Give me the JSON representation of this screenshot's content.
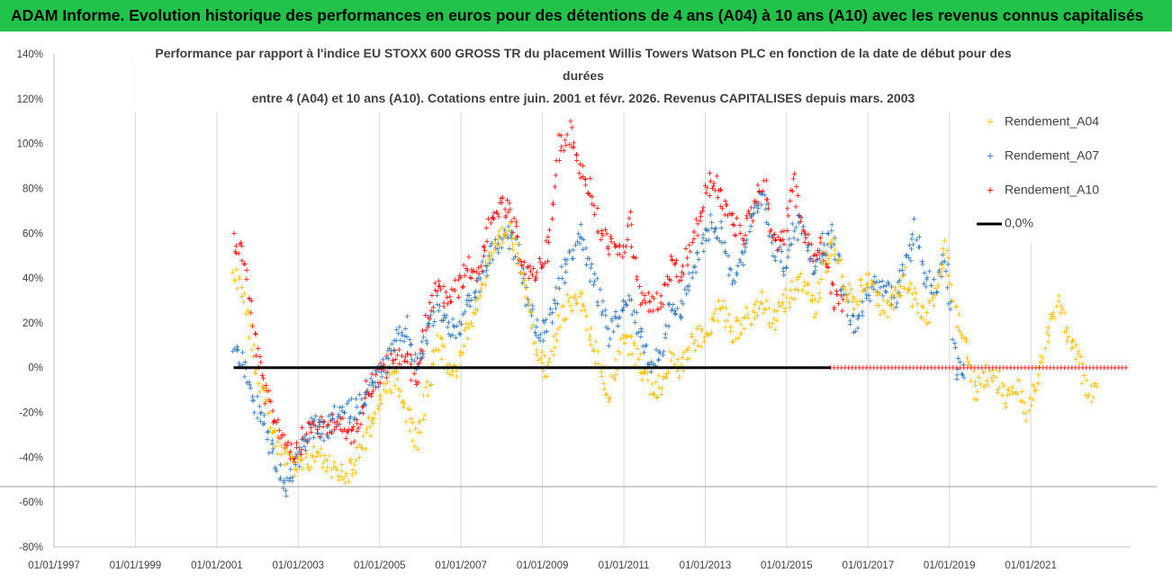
{
  "banner": {
    "text": "ADAM Informe. Evolution historique des performances en euros pour des détentions de 4 ans (A04) à 10 ans (A10) avec les revenus connus capitalisés"
  },
  "colors": {
    "banner_bg": "#21c34a",
    "A04": "#ffc000",
    "A07": "#2e75b6",
    "A10": "#ff0000",
    "zero_line": "#000000"
  },
  "chart_data": {
    "type": "scatter",
    "title_lines": [
      "Performance par rapport à l'indice EU STOXX 600 GROSS TR  du placement Willis Towers Watson PLC en fonction de la date de début pour des",
      "durées",
      "entre 4 (A04) et 10 ans (A10). Cotations entre juin. 2001 et févr. 2026. Revenus CAPITALISES depuis mars. 2003"
    ],
    "xlabel": "",
    "ylabel": "",
    "y_ticks": [
      "140%",
      "120%",
      "100%",
      "80%",
      "60%",
      "40%",
      "20%",
      "0%",
      "-20%",
      "-40%",
      "-60%",
      "-80%"
    ],
    "ylim": [
      -0.8,
      1.4
    ],
    "x_ticks": [
      "01/01/1997",
      "01/01/1999",
      "01/01/2001",
      "01/01/2003",
      "01/01/2005",
      "01/01/2007",
      "01/01/2009",
      "01/01/2011",
      "01/01/2013",
      "01/01/2015",
      "01/01/2017",
      "01/01/2019",
      "01/01/2021"
    ],
    "xlim": [
      "1997-01-01",
      "2023-06-15"
    ],
    "grid": "vertical",
    "legend_position": "right",
    "series": [
      {
        "name": "Rendement_A04",
        "color": "#ffc000",
        "x": [
          "2001-06",
          "2001-09",
          "2001-12",
          "2002-03",
          "2002-06",
          "2002-09",
          "2002-12",
          "2003-03",
          "2003-06",
          "2003-09",
          "2003-12",
          "2004-03",
          "2004-06",
          "2004-09",
          "2004-12",
          "2005-03",
          "2005-06",
          "2005-09",
          "2005-12",
          "2006-03",
          "2006-06",
          "2006-09",
          "2006-12",
          "2007-03",
          "2007-06",
          "2007-09",
          "2007-12",
          "2008-03",
          "2008-06",
          "2008-09",
          "2008-12",
          "2009-03",
          "2009-06",
          "2009-09",
          "2009-12",
          "2010-03",
          "2010-06",
          "2010-09",
          "2010-12",
          "2011-03",
          "2011-06",
          "2011-09",
          "2011-12",
          "2012-03",
          "2012-06",
          "2012-09",
          "2012-12",
          "2013-03",
          "2013-06",
          "2013-09",
          "2013-12",
          "2014-03",
          "2014-06",
          "2014-09",
          "2014-12",
          "2015-03",
          "2015-06",
          "2015-09",
          "2015-12",
          "2016-03",
          "2016-06",
          "2016-09",
          "2016-12",
          "2017-03",
          "2017-06",
          "2017-09",
          "2017-12",
          "2018-03",
          "2018-06",
          "2018-09",
          "2018-12",
          "2019-03",
          "2019-06",
          "2019-09",
          "2019-12",
          "2020-03",
          "2020-06",
          "2020-09",
          "2020-12",
          "2021-03",
          "2021-06",
          "2021-09",
          "2021-12",
          "2022-03",
          "2022-06"
        ],
        "values": [
          0.45,
          0.35,
          0.05,
          -0.15,
          -0.3,
          -0.4,
          -0.45,
          -0.43,
          -0.38,
          -0.42,
          -0.45,
          -0.47,
          -0.42,
          -0.3,
          -0.18,
          -0.08,
          -0.05,
          -0.2,
          -0.32,
          -0.1,
          0.12,
          0.03,
          0.0,
          0.18,
          0.3,
          0.45,
          0.55,
          0.62,
          0.5,
          0.3,
          0.05,
          -0.02,
          0.2,
          0.3,
          0.32,
          0.15,
          0.02,
          -0.12,
          0.08,
          0.12,
          0.02,
          -0.1,
          -0.08,
          0.05,
          0.0,
          0.1,
          0.15,
          0.2,
          0.28,
          0.15,
          0.2,
          0.25,
          0.3,
          0.2,
          0.28,
          0.35,
          0.4,
          0.25,
          0.45,
          0.55,
          0.35,
          0.3,
          0.4,
          0.35,
          0.25,
          0.3,
          0.4,
          0.3,
          0.2,
          0.35,
          0.55,
          0.25,
          0.1,
          -0.12,
          -0.02,
          -0.05,
          -0.15,
          -0.08,
          -0.2,
          -0.05,
          0.15,
          0.28,
          0.15,
          0.05,
          -0.1
        ]
      },
      {
        "name": "Rendement_A07",
        "color": "#2e75b6",
        "x": [
          "2001-06",
          "2001-09",
          "2001-12",
          "2002-03",
          "2002-06",
          "2002-09",
          "2002-12",
          "2003-03",
          "2003-06",
          "2003-09",
          "2003-12",
          "2004-03",
          "2004-06",
          "2004-09",
          "2004-12",
          "2005-03",
          "2005-06",
          "2005-09",
          "2005-12",
          "2006-03",
          "2006-06",
          "2006-09",
          "2006-12",
          "2007-03",
          "2007-06",
          "2007-09",
          "2007-12",
          "2008-03",
          "2008-06",
          "2008-09",
          "2008-12",
          "2009-03",
          "2009-06",
          "2009-09",
          "2009-12",
          "2010-03",
          "2010-06",
          "2010-09",
          "2010-12",
          "2011-03",
          "2011-06",
          "2011-09",
          "2011-12",
          "2012-03",
          "2012-06",
          "2012-09",
          "2012-12",
          "2013-03",
          "2013-06",
          "2013-09",
          "2013-12",
          "2014-03",
          "2014-06",
          "2014-09",
          "2014-12",
          "2015-03",
          "2015-06",
          "2015-09",
          "2015-12",
          "2016-03",
          "2016-06",
          "2016-09",
          "2016-12",
          "2017-03",
          "2017-06",
          "2017-09",
          "2017-12",
          "2018-03",
          "2018-06",
          "2018-09",
          "2018-12",
          "2019-03"
        ],
        "values": [
          0.1,
          0.0,
          -0.15,
          -0.25,
          -0.4,
          -0.55,
          -0.45,
          -0.32,
          -0.25,
          -0.3,
          -0.22,
          -0.2,
          -0.18,
          -0.12,
          -0.05,
          0.02,
          0.12,
          0.18,
          0.0,
          0.15,
          0.28,
          0.2,
          0.15,
          0.28,
          0.35,
          0.48,
          0.55,
          0.58,
          0.5,
          0.28,
          0.15,
          0.2,
          0.35,
          0.5,
          0.6,
          0.45,
          0.3,
          0.15,
          0.25,
          0.3,
          0.15,
          0.02,
          0.05,
          0.3,
          0.25,
          0.4,
          0.55,
          0.65,
          0.6,
          0.4,
          0.5,
          0.65,
          0.75,
          0.55,
          0.45,
          0.6,
          0.65,
          0.45,
          0.55,
          0.6,
          0.3,
          0.2,
          0.3,
          0.4,
          0.35,
          0.3,
          0.45,
          0.62,
          0.4,
          0.35,
          0.5,
          0.0
        ]
      },
      {
        "name": "Rendement_A10",
        "color": "#ff0000",
        "x": [
          "2001-06",
          "2001-09",
          "2001-12",
          "2002-03",
          "2002-06",
          "2002-09",
          "2002-12",
          "2003-03",
          "2003-06",
          "2003-09",
          "2003-12",
          "2004-03",
          "2004-06",
          "2004-09",
          "2004-12",
          "2005-03",
          "2005-06",
          "2005-09",
          "2005-12",
          "2006-03",
          "2006-06",
          "2006-09",
          "2006-12",
          "2007-03",
          "2007-06",
          "2007-09",
          "2007-12",
          "2008-03",
          "2008-06",
          "2008-09",
          "2008-12",
          "2009-03",
          "2009-06",
          "2009-09",
          "2009-12",
          "2010-03",
          "2010-06",
          "2010-09",
          "2010-12",
          "2011-03",
          "2011-06",
          "2011-09",
          "2011-12",
          "2012-03",
          "2012-06",
          "2012-09",
          "2012-12",
          "2013-03",
          "2013-06",
          "2013-09",
          "2013-12",
          "2014-03",
          "2014-06",
          "2014-09",
          "2014-12",
          "2015-03",
          "2015-06",
          "2015-09",
          "2015-12",
          "2016-03"
        ],
        "values": [
          0.58,
          0.5,
          0.15,
          -0.1,
          -0.22,
          -0.32,
          -0.38,
          -0.3,
          -0.25,
          -0.28,
          -0.22,
          -0.3,
          -0.28,
          -0.1,
          -0.05,
          0.0,
          0.05,
          0.05,
          -0.05,
          0.22,
          0.35,
          0.3,
          0.35,
          0.45,
          0.42,
          0.6,
          0.72,
          0.7,
          0.55,
          0.4,
          0.45,
          0.55,
          1.0,
          1.05,
          0.9,
          0.8,
          0.6,
          0.55,
          0.5,
          0.65,
          0.3,
          0.3,
          0.28,
          0.45,
          0.4,
          0.55,
          0.7,
          0.85,
          0.75,
          0.65,
          0.6,
          0.7,
          0.85,
          0.6,
          0.55,
          0.85,
          0.6,
          0.5,
          0.55,
          0.3
        ]
      }
    ],
    "zero_line": {
      "name": "0,0%",
      "color": "#000000",
      "value": 0,
      "x_start": "2001-06",
      "x_end": "2016-02"
    },
    "a10_flat_segment": {
      "value": 0,
      "x_start": "2016-02",
      "x_end": "2023-06"
    }
  }
}
